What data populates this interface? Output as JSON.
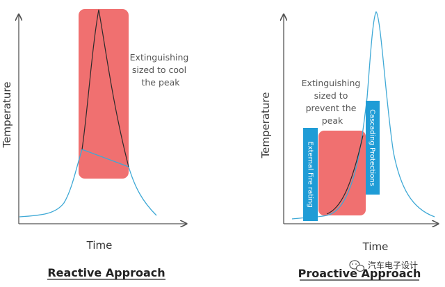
{
  "colors": {
    "curve": "#3fa9d6",
    "peak_curve": "#2b2b2b",
    "box": "#f07070",
    "protection": "#1f9cd6",
    "axis": "#555555"
  },
  "left": {
    "ylabel": "Temperature",
    "xlabel": "Time",
    "annotation": [
      "Extinguishing",
      "sized to cool",
      "the peak"
    ],
    "caption": "Reactive Approach"
  },
  "right": {
    "ylabel": "Temperature",
    "xlabel": "Time",
    "annotation": [
      "Extinguishing",
      "sized to",
      "prevent the",
      "peak"
    ],
    "external_label": "External Fire rating",
    "cascading_label": "Cascading Protections",
    "caption": "Proactive Approach"
  },
  "watermark": {
    "icon": "wechat-icon",
    "text": "汽车电子设计"
  }
}
